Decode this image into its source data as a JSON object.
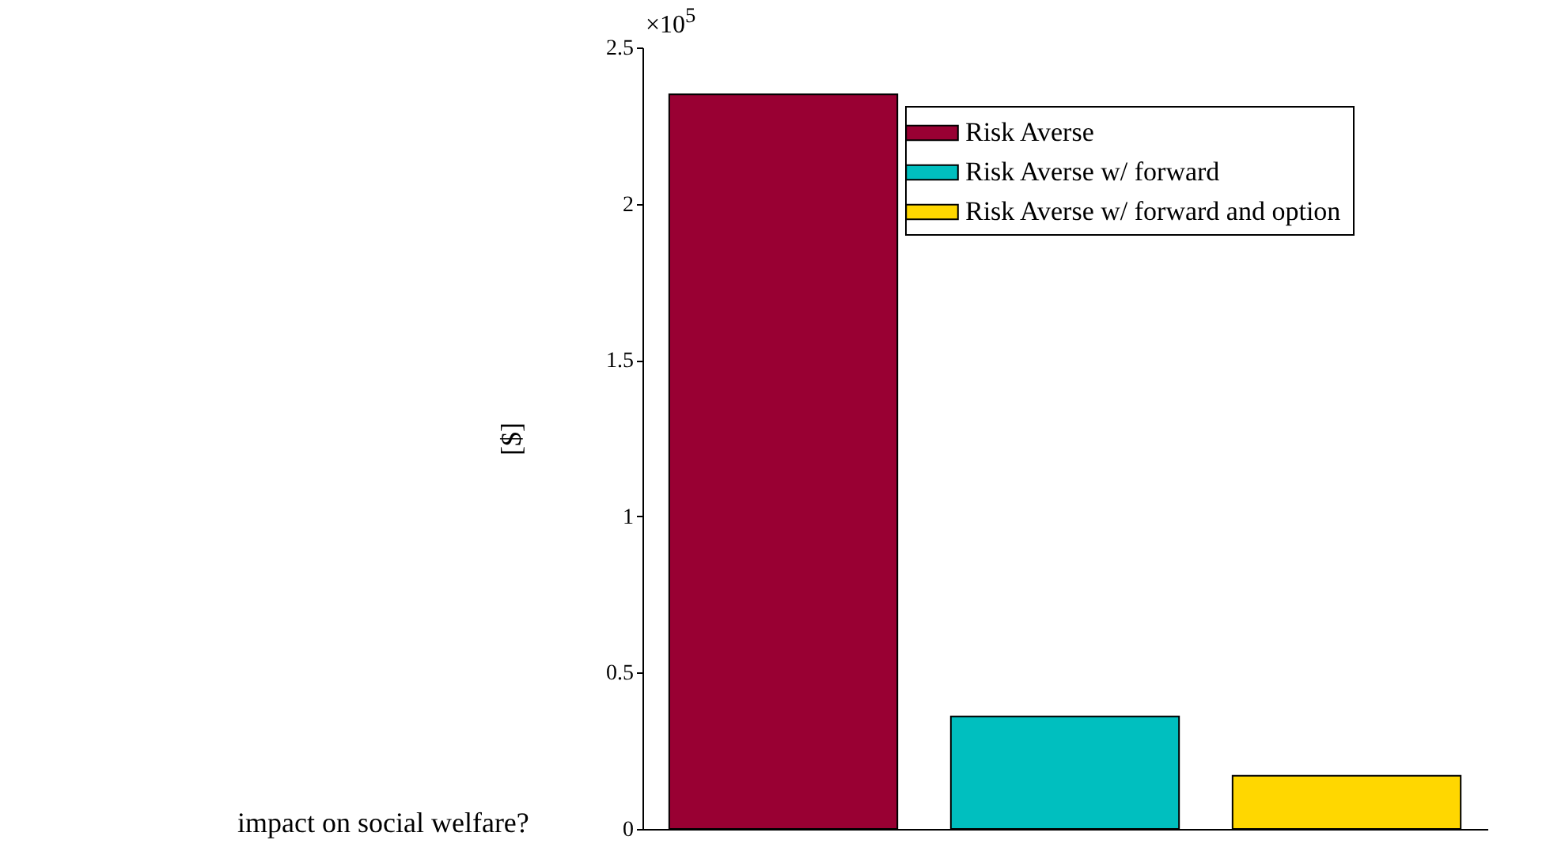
{
  "chart_data": {
    "type": "bar",
    "categories": [
      null,
      null,
      null
    ],
    "series": [
      {
        "name": "Risk Averse",
        "color": "#990033",
        "values": [
          2.35,
          null,
          null
        ]
      },
      {
        "name": "Risk Averse w/ forward",
        "color": "#00bfbf",
        "values": [
          null,
          0.36,
          null
        ]
      },
      {
        "name": "Risk Averse w/ forward and option",
        "color": "#ffd700",
        "values": [
          null,
          null,
          0.17
        ]
      }
    ],
    "ylabel": "[$]",
    "ylim": [
      0,
      2.5
    ],
    "yticks": [
      0,
      0.5,
      1,
      1.5,
      2,
      2.5
    ],
    "tick_labels": "y",
    "legend": "top right",
    "annotations": [
      "×10$^{5}$",
      "impact on social welfare?"
    ]
  }
}
